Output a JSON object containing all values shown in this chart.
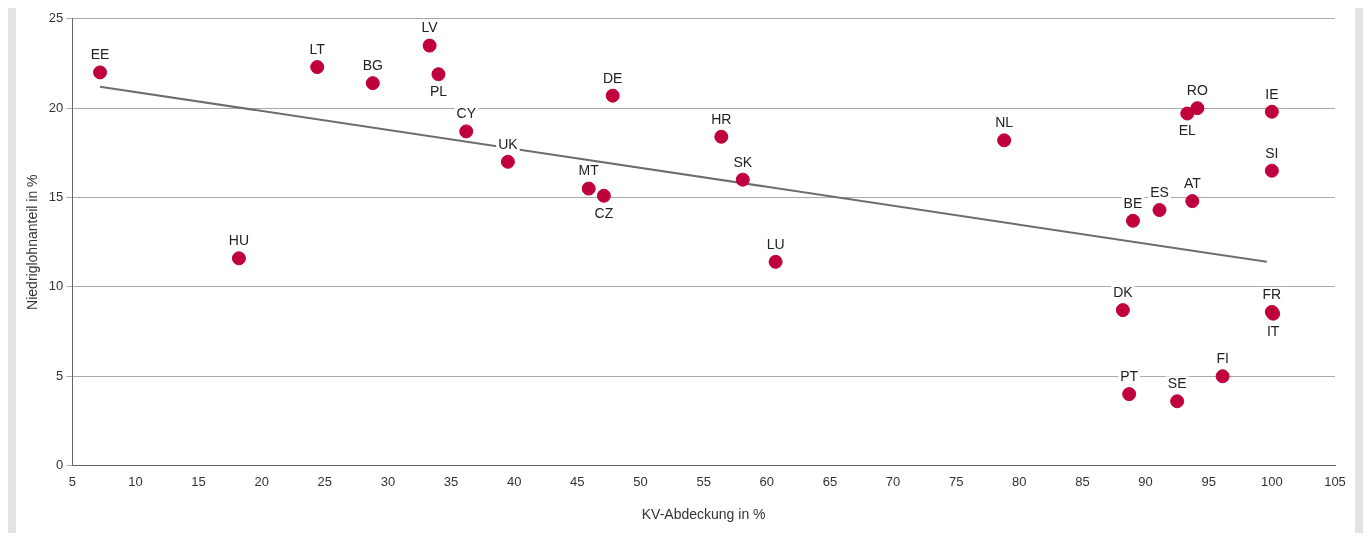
{
  "chart_data": {
    "type": "scatter",
    "xlabel": "KV-Abdeckung in %",
    "ylabel": "Niedriglohnanteil in %",
    "xlim": [
      5,
      105
    ],
    "xticks": [
      5,
      10,
      15,
      20,
      25,
      30,
      35,
      40,
      45,
      50,
      55,
      60,
      65,
      70,
      75,
      80,
      85,
      90,
      95,
      100,
      105
    ],
    "ylim": [
      0,
      25
    ],
    "yticks": [
      0,
      5,
      10,
      15,
      20,
      25
    ],
    "grid": "y",
    "legend": false,
    "marker": "circle",
    "series": [
      {
        "type": "scatter",
        "color": "#c0003c",
        "x": [
          7.2,
          18.2,
          24.4,
          28.8,
          33.3,
          34.0,
          36.2,
          39.5,
          45.9,
          47.1,
          47.8,
          56.4,
          58.1,
          60.7,
          78.8,
          88.2,
          88.7,
          89.0,
          91.1,
          92.5,
          93.3,
          94.1,
          93.7,
          96.1,
          100,
          100,
          100,
          100.1
        ],
        "values": [
          22.0,
          11.6,
          22.3,
          21.4,
          23.5,
          21.9,
          18.7,
          17.0,
          15.5,
          15.1,
          20.7,
          18.4,
          16.0,
          11.4,
          18.2,
          8.7,
          4.0,
          13.7,
          14.3,
          3.6,
          19.7,
          20.0,
          14.8,
          5.0,
          19.8,
          16.5,
          8.6,
          8.5
        ],
        "value_labels": [
          "EE",
          "HU",
          "LT",
          "BG",
          "LV",
          "PL",
          "CY",
          "UK",
          "MT",
          "CZ",
          "DE",
          "HR",
          "SK",
          "LU",
          "NL",
          "DK",
          "PT",
          "BE",
          "ES",
          "SE",
          "EL",
          "RO",
          "AT",
          "FI",
          "IE",
          "SI",
          "FR",
          "IT"
        ]
      },
      {
        "type": "line",
        "color": "#6d6d6d",
        "marker": "none",
        "x": [
          7.2,
          99.6
        ],
        "values": [
          21.2,
          11.4
        ]
      }
    ]
  }
}
